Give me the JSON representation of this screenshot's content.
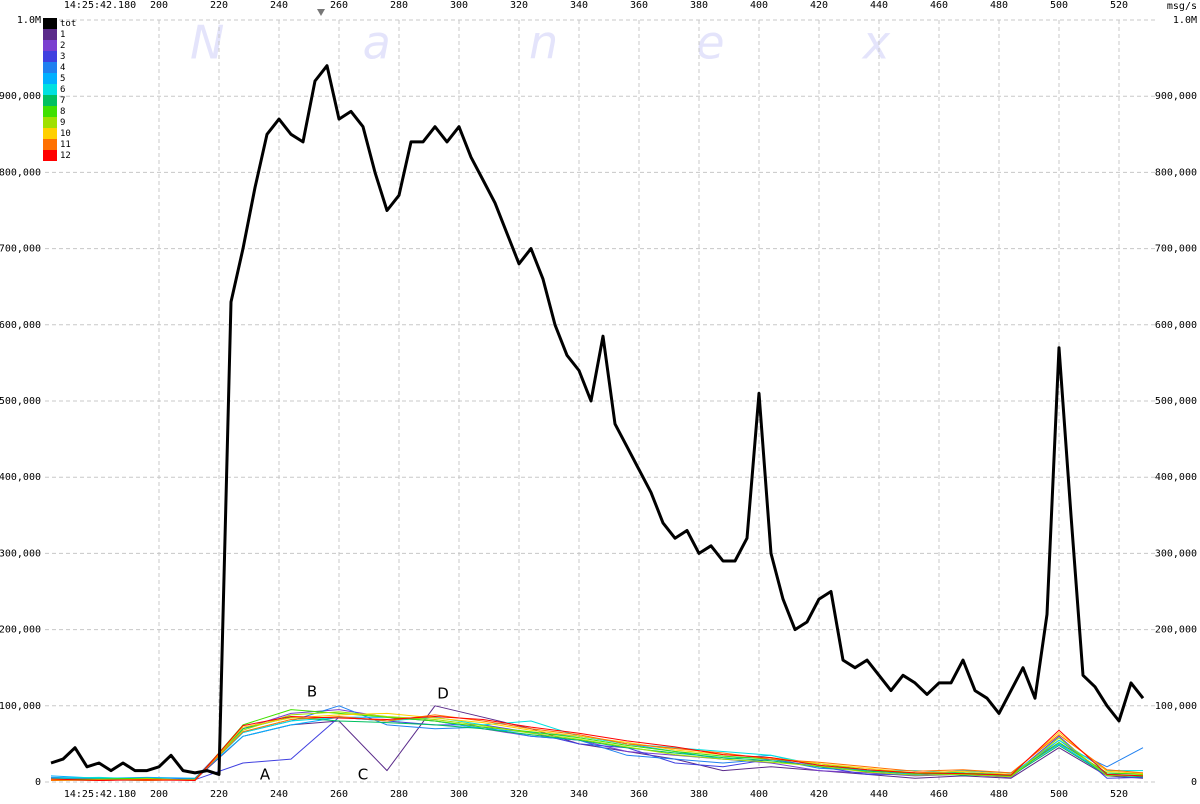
{
  "chart_data": {
    "type": "line",
    "time_label": "14:25:42.180",
    "unit_label": "msg/s",
    "watermark": "N  a  n  e  x",
    "annotations": [
      "A",
      "B",
      "C",
      "D"
    ],
    "xlim": [
      162,
      532
    ],
    "xticks": [
      200,
      220,
      240,
      260,
      280,
      300,
      320,
      340,
      360,
      380,
      400,
      420,
      440,
      460,
      480,
      500,
      520
    ],
    "ylim": [
      0,
      1000000
    ],
    "yticks": [
      0,
      {
        "value": 100000,
        "label": "100,000"
      },
      {
        "value": 200000,
        "label": "200,000"
      },
      {
        "value": 300000,
        "label": "300,000"
      },
      {
        "value": 400000,
        "label": "400,000"
      },
      {
        "value": 500000,
        "label": "500,000"
      },
      {
        "value": 600000,
        "label": "600,000"
      },
      {
        "value": 700000,
        "label": "700,000"
      },
      {
        "value": 800000,
        "label": "800,000"
      },
      {
        "value": 900000,
        "label": "900,000"
      },
      {
        "value": 1000000,
        "label": "1.0M"
      }
    ],
    "grid": true,
    "legend": "top-left",
    "x": [
      164,
      180,
      196,
      212,
      228,
      244,
      260,
      276,
      292,
      308,
      324,
      340,
      356,
      372,
      388,
      404,
      420,
      436,
      452,
      468,
      484,
      500,
      516,
      528
    ],
    "series": [
      {
        "name": "tot",
        "color": "#000000",
        "x": [
          164,
          168,
          172,
          176,
          180,
          184,
          188,
          192,
          196,
          200,
          204,
          208,
          212,
          216,
          220,
          224,
          228,
          232,
          236,
          240,
          244,
          248,
          252,
          256,
          260,
          264,
          268,
          272,
          276,
          280,
          284,
          288,
          292,
          296,
          300,
          304,
          308,
          312,
          316,
          320,
          324,
          328,
          332,
          336,
          340,
          344,
          348,
          352,
          356,
          360,
          364,
          368,
          372,
          376,
          380,
          384,
          388,
          392,
          396,
          400,
          404,
          408,
          412,
          416,
          420,
          424,
          428,
          432,
          436,
          440,
          444,
          448,
          452,
          456,
          460,
          464,
          468,
          472,
          476,
          480,
          484,
          488,
          492,
          496,
          500,
          504,
          508,
          512,
          516,
          520,
          524,
          528
        ],
        "values": [
          25000,
          30000,
          45000,
          20000,
          25000,
          15000,
          25000,
          15000,
          15000,
          20000,
          35000,
          15000,
          12000,
          15000,
          10000,
          630000,
          700000,
          780000,
          850000,
          870000,
          850000,
          840000,
          920000,
          940000,
          870000,
          880000,
          860000,
          800000,
          750000,
          770000,
          840000,
          840000,
          860000,
          840000,
          860000,
          820000,
          790000,
          760000,
          720000,
          680000,
          700000,
          660000,
          600000,
          560000,
          540000,
          500000,
          585000,
          470000,
          440000,
          410000,
          380000,
          340000,
          320000,
          330000,
          300000,
          310000,
          290000,
          290000,
          320000,
          510000,
          300000,
          240000,
          200000,
          210000,
          240000,
          250000,
          160000,
          150000,
          160000,
          140000,
          120000,
          140000,
          130000,
          115000,
          130000,
          130000,
          160000,
          120000,
          110000,
          90000,
          120000,
          150000,
          110000,
          220000,
          570000,
          350000,
          140000,
          125000,
          100000,
          80000,
          130000,
          110000
        ]
      },
      {
        "name": "1",
        "color": "#5a2a8a",
        "values": [
          3000,
          2000,
          4000,
          3000,
          60000,
          75000,
          80000,
          15000,
          100000,
          85000,
          70000,
          50000,
          40000,
          30000,
          15000,
          20000,
          15000,
          10000,
          5000,
          8000,
          5000,
          45000,
          8000,
          5000
        ]
      },
      {
        "name": "2",
        "color": "#7a3fd0",
        "values": [
          5000,
          4000,
          3000,
          5000,
          70000,
          90000,
          95000,
          85000,
          80000,
          70000,
          60000,
          55000,
          40000,
          35000,
          30000,
          25000,
          15000,
          12000,
          8000,
          10000,
          6000,
          55000,
          10000,
          8000
        ]
      },
      {
        "name": "3",
        "color": "#4040e0",
        "values": [
          4000,
          3000,
          5000,
          3000,
          25000,
          30000,
          85000,
          80000,
          75000,
          75000,
          65000,
          50000,
          45000,
          25000,
          20000,
          30000,
          20000,
          10000,
          10000,
          12000,
          8000,
          60000,
          5000,
          6000
        ]
      },
      {
        "name": "4",
        "color": "#2080f0",
        "values": [
          6000,
          5000,
          3000,
          4000,
          65000,
          80000,
          100000,
          75000,
          70000,
          72000,
          60000,
          55000,
          35000,
          30000,
          25000,
          30000,
          18000,
          15000,
          12000,
          10000,
          10000,
          50000,
          20000,
          45000
        ]
      },
      {
        "name": "5",
        "color": "#00b0ff",
        "values": [
          8000,
          5000,
          6000,
          5000,
          60000,
          75000,
          85000,
          85000,
          80000,
          70000,
          65000,
          60000,
          50000,
          40000,
          30000,
          35000,
          20000,
          15000,
          10000,
          15000,
          12000,
          50000,
          10000,
          12000
        ]
      },
      {
        "name": "6",
        "color": "#00e0e0",
        "values": [
          5000,
          6000,
          4000,
          3000,
          65000,
          80000,
          85000,
          80000,
          85000,
          75000,
          80000,
          60000,
          50000,
          45000,
          40000,
          35000,
          22000,
          15000,
          15000,
          12000,
          10000,
          55000,
          15000,
          15000
        ]
      },
      {
        "name": "7",
        "color": "#00c060",
        "values": [
          4000,
          3000,
          2000,
          4000,
          70000,
          85000,
          80000,
          78000,
          75000,
          70000,
          62000,
          55000,
          45000,
          38000,
          32000,
          28000,
          20000,
          14000,
          12000,
          9000,
          8000,
          48000,
          9000,
          7000
        ]
      },
      {
        "name": "8",
        "color": "#40e000",
        "values": [
          3000,
          4000,
          5000,
          2000,
          75000,
          95000,
          90000,
          85000,
          80000,
          72000,
          66000,
          58000,
          48000,
          40000,
          34000,
          30000,
          24000,
          16000,
          11000,
          12000,
          9000,
          52000,
          12000,
          10000
        ]
      },
      {
        "name": "9",
        "color": "#a0e000",
        "values": [
          2000,
          3000,
          3000,
          3000,
          68000,
          88000,
          92000,
          86000,
          82000,
          74000,
          64000,
          56000,
          46000,
          36000,
          30000,
          26000,
          21000,
          13000,
          9000,
          10000,
          7000,
          58000,
          8000,
          9000
        ]
      },
      {
        "name": "10",
        "color": "#ffd000",
        "values": [
          3000,
          2000,
          4000,
          2000,
          72000,
          84000,
          88000,
          90000,
          84000,
          78000,
          68000,
          60000,
          52000,
          42000,
          36000,
          32000,
          24000,
          18000,
          12000,
          14000,
          10000,
          65000,
          14000,
          11000
        ]
      },
      {
        "name": "11",
        "color": "#ff7000",
        "values": [
          2000,
          3000,
          2000,
          3000,
          66000,
          82000,
          86000,
          80000,
          88000,
          80000,
          70000,
          62000,
          50000,
          44000,
          38000,
          30000,
          26000,
          20000,
          14000,
          16000,
          12000,
          62000,
          16000,
          12000
        ]
      },
      {
        "name": "12",
        "color": "#ff0000",
        "values": [
          4000,
          2000,
          3000,
          2000,
          74000,
          86000,
          84000,
          82000,
          86000,
          82000,
          72000,
          64000,
          54000,
          46000,
          36000,
          32000,
          22000,
          16000,
          12000,
          11000,
          9000,
          68000,
          10000,
          8000
        ]
      }
    ]
  }
}
